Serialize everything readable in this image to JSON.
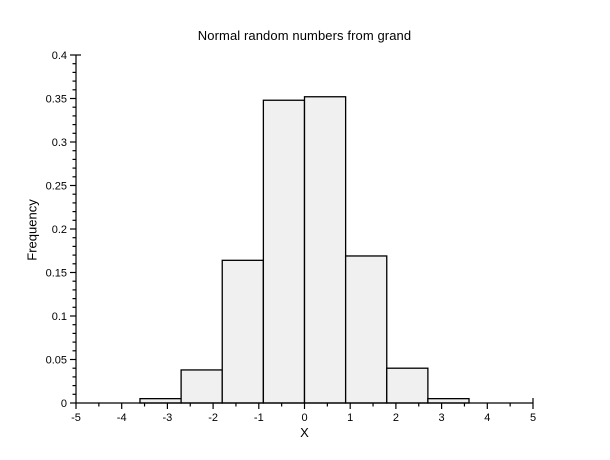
{
  "window": {
    "background": "#ffffff"
  },
  "chart_data": {
    "type": "bar",
    "subtype": "histogram",
    "title": "Normal random numbers from grand",
    "xlabel": "X",
    "ylabel": "Frequency",
    "xlim": [
      -5,
      5
    ],
    "ylim": [
      0,
      0.4
    ],
    "x_tick_major": 1,
    "x_tick_minor": 0.5,
    "y_tick_major": 0.05,
    "y_tick_minor": 0.01,
    "x_tick_labels": [
      "-5",
      "-4",
      "-3",
      "-2",
      "-1",
      "0",
      "1",
      "2",
      "3",
      "4",
      "5"
    ],
    "y_tick_labels": [
      "0",
      "0.05",
      "0.1",
      "0.15",
      "0.2",
      "0.25",
      "0.3",
      "0.35",
      "0.4"
    ],
    "bin_edges": [
      -3.6,
      -2.7,
      -1.8,
      -0.9,
      0,
      0.9,
      1.8,
      2.7,
      3.6
    ],
    "frequencies": [
      0.005,
      0.038,
      0.164,
      0.348,
      0.352,
      0.169,
      0.04,
      0.005
    ],
    "grid": false,
    "legend": null,
    "colors": {
      "bar_fill": "#f0f0f0",
      "bar_stroke": "#000000",
      "axis": "#000000",
      "text": "#000000",
      "background": "#ffffff"
    }
  }
}
